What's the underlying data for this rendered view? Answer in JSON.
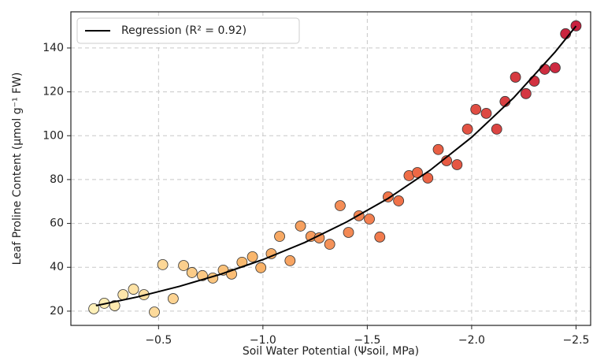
{
  "chart_data": {
    "type": "scatter",
    "x_label": "Soil Water Potential (Ψsoil, MPa)",
    "y_label": "Leaf Proline Content (μmol g⁻¹ FW)",
    "xlim": [
      -0.08,
      -2.57
    ],
    "ylim": [
      13.5,
      156.5
    ],
    "xticks": [
      {
        "value": -0.5,
        "label": "−0.5"
      },
      {
        "value": -1.0,
        "label": "−1.0"
      },
      {
        "value": -1.5,
        "label": "−1.5"
      },
      {
        "value": -2.0,
        "label": "−2.0"
      },
      {
        "value": -2.5,
        "label": "−2.5"
      }
    ],
    "yticks": [
      20,
      40,
      60,
      80,
      100,
      120,
      140
    ],
    "grid": true,
    "legend": "upper left",
    "points": {
      "colormap": [
        "#fef0b8",
        "#f9b56a",
        "#ef6a45",
        "#c8203f"
      ],
      "edgecolor": "#333333",
      "x": [
        -0.19,
        -0.24,
        -0.29,
        -0.33,
        -0.38,
        -0.43,
        -0.48,
        -0.52,
        -0.57,
        -0.62,
        -0.66,
        -0.71,
        -0.76,
        -0.81,
        -0.85,
        -0.9,
        -0.95,
        -0.99,
        -1.04,
        -1.08,
        -1.13,
        -1.18,
        -1.23,
        -1.27,
        -1.32,
        -1.37,
        -1.41,
        -1.46,
        -1.51,
        -1.56,
        -1.6,
        -1.65,
        -1.7,
        -1.74,
        -1.79,
        -1.84,
        -1.88,
        -1.93,
        -1.98,
        -2.02,
        -2.07,
        -2.12,
        -2.16,
        -2.21,
        -2.26,
        -2.3,
        -2.35,
        -2.4,
        -2.45,
        -2.5
      ],
      "values": [
        21.1,
        23.6,
        22.5,
        27.5,
        30,
        27.5,
        19.6,
        41.2,
        25.7,
        40.8,
        37.6,
        36.2,
        35.1,
        38.7,
        36.9,
        42.3,
        44.8,
        39.8,
        46.2,
        54.1,
        43,
        58.8,
        54.1,
        53.4,
        50.5,
        68.1,
        55.9,
        63.5,
        62,
        53.8,
        72.1,
        70.3,
        81.8,
        83.2,
        80.7,
        93.7,
        88.6,
        86.8,
        103,
        112,
        110.2,
        103,
        115.6,
        126.7,
        119.2,
        124.9,
        130.3,
        131,
        146.5,
        150.1
      ]
    },
    "series": [
      {
        "name": "Regression (R² = 0.92)",
        "color": "#000000",
        "x": [
          -0.2,
          -0.4,
          -0.6,
          -0.8,
          -1.0,
          -1.2,
          -1.4,
          -1.6,
          -1.8,
          -2.0,
          -2.2,
          -2.4,
          -2.5
        ],
        "values": [
          22.5,
          26.5,
          31.3,
          36.9,
          43.5,
          51.3,
          60.6,
          71.4,
          84.2,
          99.3,
          117.2,
          138.2,
          150
        ]
      }
    ]
  }
}
